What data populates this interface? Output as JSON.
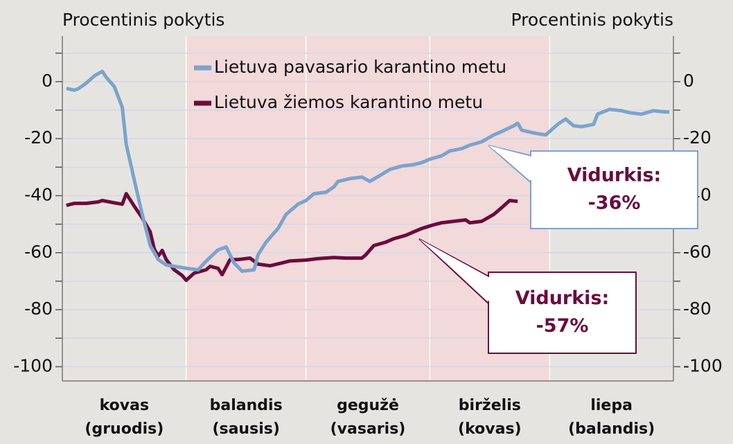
{
  "chart_data": {
    "type": "line",
    "y_label": "Procentinis pokytis",
    "y2_label": "Procentinis pokytis",
    "categories": [
      [
        "kovas",
        "(gruodis)"
      ],
      [
        "balandis",
        "(sausis)"
      ],
      [
        "gegužė",
        "(vasaris)"
      ],
      [
        "birželis",
        "(kovas)"
      ],
      [
        "liepa",
        "(balandis)"
      ]
    ],
    "category_bounds": [
      0,
      31,
      61,
      92,
      122,
      153
    ],
    "shade": [
      31,
      122
    ],
    "shade_color": "#f2d9da",
    "xlim": [
      0,
      153
    ],
    "ylim": [
      -105,
      16
    ],
    "yticks": [
      0,
      -20,
      -40,
      -60,
      -80,
      -100
    ],
    "minor_yticks": [
      10,
      -10,
      -30,
      -50,
      -70,
      -90
    ],
    "y2lim": [
      -105,
      16
    ],
    "y2ticks": [
      0,
      -20,
      -40,
      -60,
      -80,
      -100
    ],
    "grid": true,
    "series": [
      {
        "name": "Lietuva pavasario karantino metu",
        "color": "#7ba3cc",
        "x": [
          1,
          3,
          4,
          6,
          8,
          10,
          11,
          13,
          15,
          16,
          18,
          20,
          22,
          24,
          26,
          29,
          31,
          34,
          36,
          39,
          41,
          43,
          45,
          48,
          49,
          51,
          54,
          56,
          59,
          61,
          63,
          66,
          68,
          69,
          72,
          75,
          77,
          80,
          82,
          85,
          88,
          90,
          92,
          95,
          97,
          100,
          102,
          105,
          108,
          110,
          113,
          114,
          115,
          118,
          121,
          122,
          124,
          126,
          128,
          130,
          133,
          134,
          137,
          140,
          142,
          145,
          148,
          150,
          152
        ],
        "values": [
          -2.4,
          -3,
          -2.5,
          -0.5,
          2,
          3.6,
          1.5,
          -1.7,
          -9,
          -22,
          -34.5,
          -46.6,
          -57.5,
          -62.4,
          -64.3,
          -65,
          -65.5,
          -66,
          -63,
          -59,
          -58,
          -63.6,
          -66.5,
          -66,
          -60.7,
          -56.3,
          -51.5,
          -46.6,
          -43,
          -41.7,
          -39.3,
          -38.8,
          -36.9,
          -35,
          -34,
          -33.5,
          -35,
          -32.5,
          -30.8,
          -29.6,
          -29.1,
          -28.4,
          -27.2,
          -26,
          -24.3,
          -23.5,
          -22.3,
          -21.1,
          -18.7,
          -17.5,
          -15.5,
          -14.6,
          -17,
          -18,
          -18.7,
          -17.5,
          -15,
          -13.1,
          -15.5,
          -15.8,
          -15,
          -11.4,
          -9.7,
          -10.2,
          -10.9,
          -11.4,
          -10.2,
          -10.5,
          -10.7
        ]
      },
      {
        "name": "Lietuva žiemos karantino metu",
        "color": "#6b0b3c",
        "x": [
          1,
          3,
          6,
          9,
          10,
          13,
          15,
          16,
          18,
          20,
          22,
          23,
          24,
          25,
          26,
          28,
          30,
          31,
          33,
          36,
          37,
          39,
          40,
          42,
          44,
          47,
          49,
          52,
          55,
          57,
          61,
          64,
          68,
          71,
          75,
          76,
          78,
          81,
          83,
          86,
          88,
          90,
          93,
          95,
          98,
          101,
          102,
          105,
          108,
          110,
          112,
          114
        ],
        "values": [
          -43.4,
          -42.7,
          -42.7,
          -42.2,
          -41.7,
          -42.5,
          -43,
          -39.3,
          -43.7,
          -47.8,
          -52.7,
          -58.7,
          -61.2,
          -59.2,
          -62.4,
          -66,
          -68,
          -69.7,
          -67.2,
          -66,
          -64.8,
          -65.5,
          -67.7,
          -62.4,
          -62.4,
          -61.9,
          -64,
          -64.6,
          -63.6,
          -62.9,
          -62.6,
          -62.1,
          -61.7,
          -61.9,
          -61.9,
          -60.7,
          -57.5,
          -56.3,
          -55.1,
          -53.9,
          -52.7,
          -51.5,
          -50.2,
          -49.5,
          -49,
          -48.5,
          -49.5,
          -49,
          -46.6,
          -44.2,
          -41.7,
          -42
        ]
      }
    ],
    "annotations": [
      {
        "text": [
          "Vidurkis:",
          "-36%"
        ],
        "color": "#7ba3cc",
        "text_color": "#6b0b3c"
      },
      {
        "text": [
          "Vidurkis:",
          "-57%"
        ],
        "color": "#6b0b3c",
        "text_color": "#6b0b3c"
      }
    ]
  }
}
